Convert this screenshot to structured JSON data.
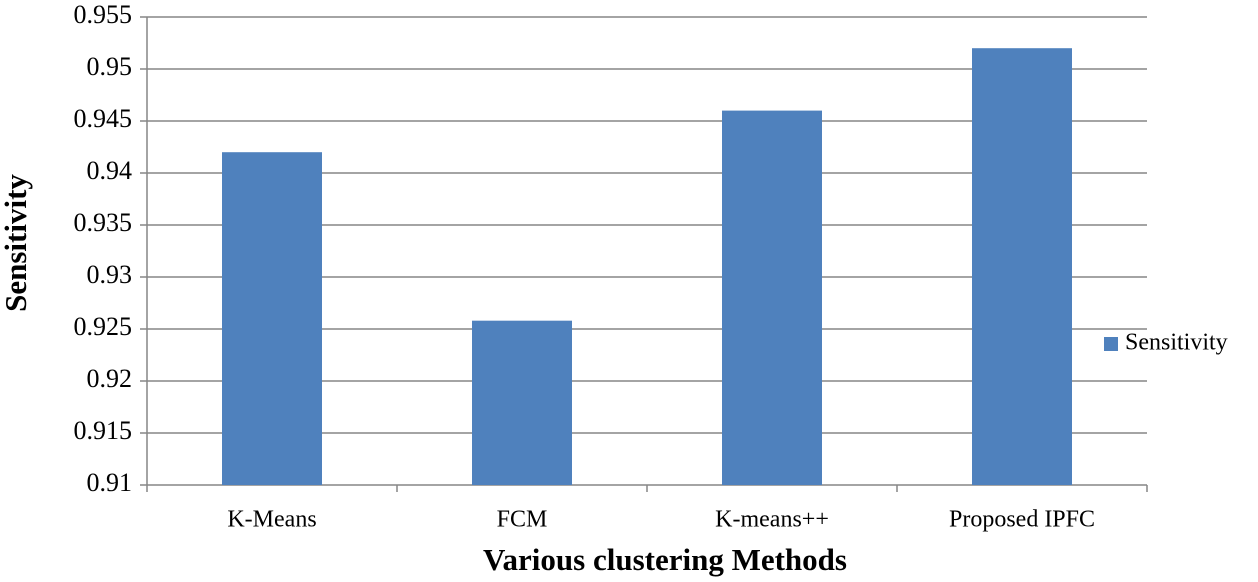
{
  "chart_data": {
    "type": "bar",
    "x_label": "Various clustering Methods",
    "y_label": "Sensitivity",
    "categories": [
      "K-Means",
      "FCM",
      "K-means++",
      "Proposed IPFC"
    ],
    "series": [
      {
        "name": "Sensitivity",
        "color": "#4f81bd",
        "values": [
          0.942,
          0.9258,
          0.946,
          0.952
        ]
      }
    ],
    "ylim": [
      0.91,
      0.955
    ],
    "yticks": [
      0.91,
      0.915,
      0.92,
      0.925,
      0.93,
      0.935,
      0.94,
      0.945,
      0.95,
      0.955
    ],
    "grid": true,
    "legend": "right"
  }
}
